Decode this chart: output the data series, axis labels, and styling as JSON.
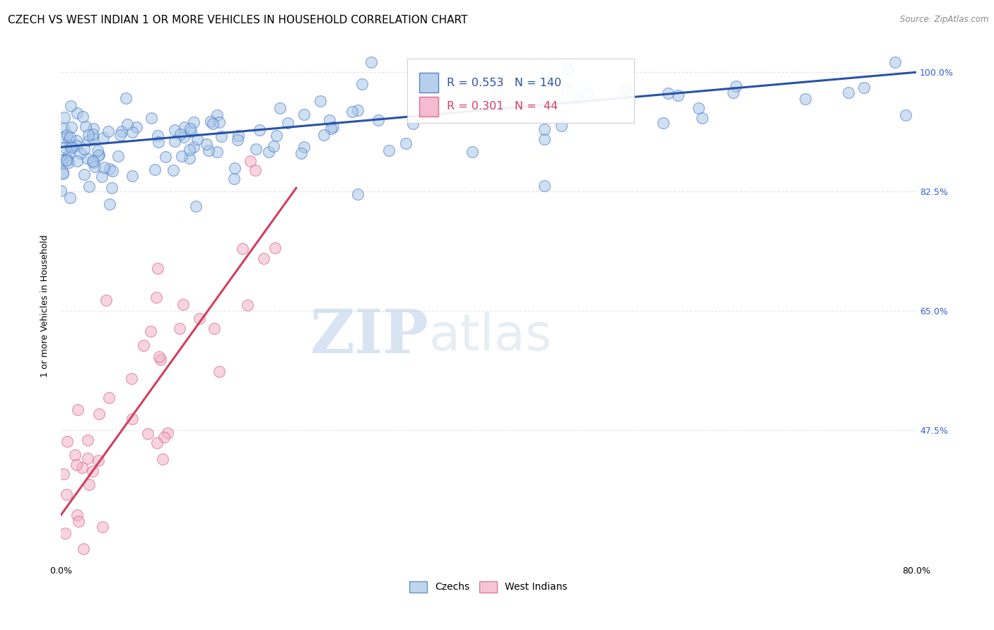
{
  "title": "CZECH VS WEST INDIAN 1 OR MORE VEHICLES IN HOUSEHOLD CORRELATION CHART",
  "source": "Source: ZipAtlas.com",
  "ylabel": "1 or more Vehicles in Household",
  "x_min": 0.0,
  "x_max": 80.0,
  "y_min": 28.0,
  "y_max": 103.5,
  "y_ticks_right": [
    47.5,
    65.0,
    82.5,
    100.0
  ],
  "legend_czechs": "Czechs",
  "legend_west_indians": "West Indians",
  "blue_face_color": "#a8c8e8",
  "blue_edge_color": "#4472c4",
  "pink_face_color": "#f4b0c8",
  "pink_edge_color": "#d06080",
  "blue_line_color": "#2952a8",
  "pink_line_color": "#d04060",
  "R_blue": 0.553,
  "N_blue": 140,
  "R_pink": 0.301,
  "N_pink": 44,
  "watermark_zip": "ZIP",
  "watermark_atlas": "atlas",
  "title_fontsize": 11,
  "axis_label_fontsize": 9,
  "tick_fontsize": 9,
  "source_fontsize": 8.5
}
